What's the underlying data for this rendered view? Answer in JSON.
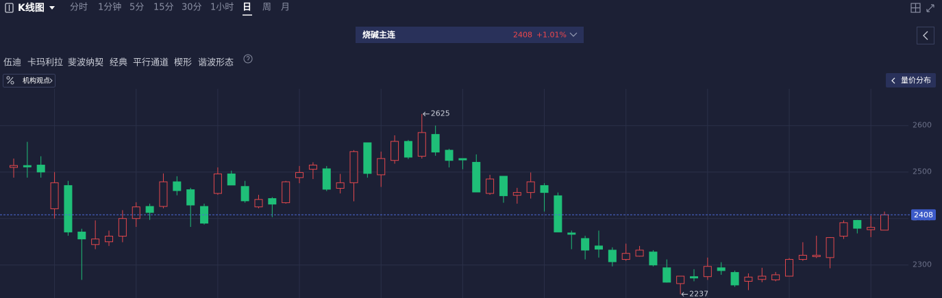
{
  "toolbar": {
    "title": "K线图",
    "periods": [
      "分时",
      "1分钟",
      "5分",
      "15分",
      "30分",
      "1小时",
      "日",
      "周",
      "月"
    ],
    "selected": 6
  },
  "quote": {
    "name": "烧碱主连",
    "price": "2408",
    "change": "+1.01%"
  },
  "drawing_tools": [
    "伍迪",
    "卡玛利拉",
    "斐波纳契",
    "经典",
    "平行通道",
    "楔形",
    "谐波形态"
  ],
  "buttons": {
    "views": "机构观点",
    "volume_profile": "量价分布"
  },
  "chart_data": {
    "type": "candlestick",
    "open": [
      2510,
      2514,
      2515,
      2421,
      2471,
      2371,
      2344,
      2350,
      2362,
      2400,
      2426,
      2426,
      2479,
      2462,
      2426,
      2454,
      2496,
      2469,
      2425,
      2443,
      2434,
      2488,
      2506,
      2507,
      2465,
      2477,
      2563,
      2494,
      2525,
      2566,
      2534,
      2581,
      2547,
      2529,
      2521,
      2454,
      2491,
      2450,
      2456,
      2471,
      2449,
      2369,
      2357,
      2341,
      2332,
      2312,
      2319,
      2328,
      2294,
      2260,
      2275,
      2275,
      2294,
      2284,
      2265,
      2269,
      2268,
      2276,
      2312,
      2318,
      2316,
      2362,
      2396,
      2376,
      2375
    ],
    "high": [
      2529,
      2565,
      2534,
      2500,
      2481,
      2378,
      2396,
      2374,
      2418,
      2435,
      2432,
      2497,
      2491,
      2466,
      2432,
      2510,
      2503,
      2481,
      2451,
      2446,
      2481,
      2513,
      2521,
      2513,
      2496,
      2547,
      2563,
      2544,
      2579,
      2569,
      2625,
      2600,
      2550,
      2529,
      2538,
      2494,
      2491,
      2466,
      2499,
      2476,
      2456,
      2374,
      2363,
      2374,
      2338,
      2346,
      2341,
      2332,
      2312,
      2276,
      2291,
      2316,
      2306,
      2288,
      2282,
      2294,
      2285,
      2315,
      2349,
      2363,
      2360,
      2396,
      2397,
      2406,
      2415
    ],
    "low": [
      2488,
      2488,
      2488,
      2400,
      2363,
      2268,
      2334,
      2341,
      2349,
      2382,
      2397,
      2422,
      2450,
      2382,
      2387,
      2451,
      2472,
      2434,
      2422,
      2403,
      2432,
      2476,
      2485,
      2459,
      2454,
      2437,
      2488,
      2468,
      2518,
      2528,
      2529,
      2535,
      2510,
      2506,
      2457,
      2451,
      2434,
      2432,
      2443,
      2415,
      2371,
      2334,
      2312,
      2316,
      2297,
      2309,
      2318,
      2297,
      2262,
      2237,
      2265,
      2268,
      2279,
      2253,
      2246,
      2263,
      2265,
      2276,
      2309,
      2315,
      2293,
      2356,
      2368,
      2360,
      2375
    ],
    "close": [
      2514,
      2511,
      2500,
      2477,
      2371,
      2356,
      2356,
      2362,
      2400,
      2425,
      2413,
      2479,
      2460,
      2429,
      2390,
      2496,
      2472,
      2438,
      2441,
      2431,
      2479,
      2499,
      2515,
      2463,
      2477,
      2544,
      2497,
      2529,
      2566,
      2532,
      2585,
      2543,
      2525,
      2526,
      2457,
      2485,
      2449,
      2456,
      2479,
      2456,
      2371,
      2366,
      2332,
      2334,
      2307,
      2325,
      2332,
      2300,
      2263,
      2276,
      2272,
      2297,
      2288,
      2257,
      2274,
      2276,
      2279,
      2312,
      2321,
      2321,
      2359,
      2391,
      2379,
      2381,
      2408
    ],
    "colors": {
      "up": "#e5484d",
      "down": "#1fbf78"
    },
    "ylim": [
      2229,
      2679
    ],
    "yticks": [
      2300,
      2400,
      2500,
      2600
    ],
    "grid": true,
    "last_price": 2408,
    "max_label": 2625,
    "min_label": 2237
  }
}
